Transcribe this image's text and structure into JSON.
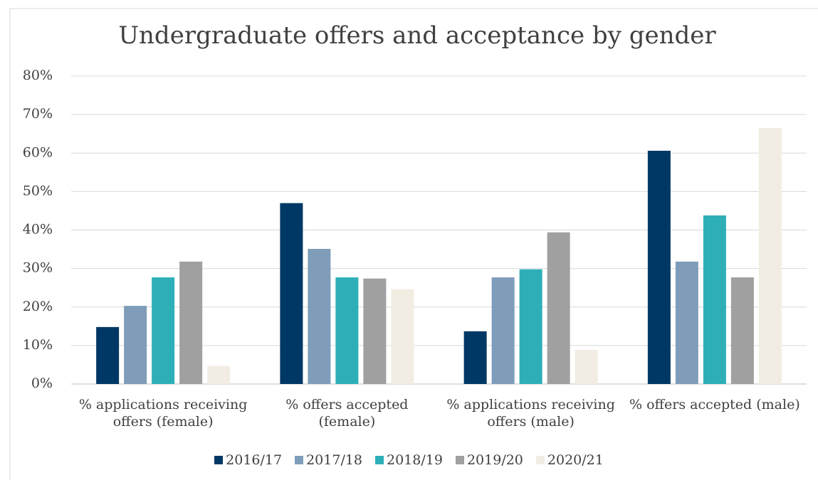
{
  "chart_data": {
    "type": "bar",
    "title": "Undergraduate offers and acceptance by gender",
    "categories": [
      "% applications receiving offers (female)",
      "% offers accepted (female)",
      "% applications receiving offers (male)",
      "% offers accepted (male)"
    ],
    "series": [
      {
        "name": "2016/17",
        "color": "#003865",
        "values": [
          14.8,
          47.0,
          13.7,
          60.6
        ]
      },
      {
        "name": "2017/18",
        "color": "#7f9db9",
        "values": [
          20.3,
          35.1,
          27.7,
          31.8
        ]
      },
      {
        "name": "2018/19",
        "color": "#2eafb8",
        "values": [
          27.7,
          27.7,
          29.8,
          43.8
        ]
      },
      {
        "name": "2019/20",
        "color": "#a0a0a0",
        "values": [
          31.8,
          27.4,
          39.4,
          27.7
        ]
      },
      {
        "name": "2020/21",
        "color": "#f2ede3",
        "values": [
          4.7,
          24.6,
          8.9,
          66.5
        ]
      }
    ],
    "ylim": [
      0,
      80
    ],
    "yticks": [
      {
        "value": 0,
        "label": "0%"
      },
      {
        "value": 10,
        "label": "10%"
      },
      {
        "value": 20,
        "label": "20%"
      },
      {
        "value": 30,
        "label": "30%"
      },
      {
        "value": 40,
        "label": "40%"
      },
      {
        "value": 50,
        "label": "50%"
      },
      {
        "value": 60,
        "label": "60%"
      },
      {
        "value": 70,
        "label": "70%"
      },
      {
        "value": 80,
        "label": "80%"
      }
    ],
    "grid": true,
    "legend": "bottom"
  }
}
